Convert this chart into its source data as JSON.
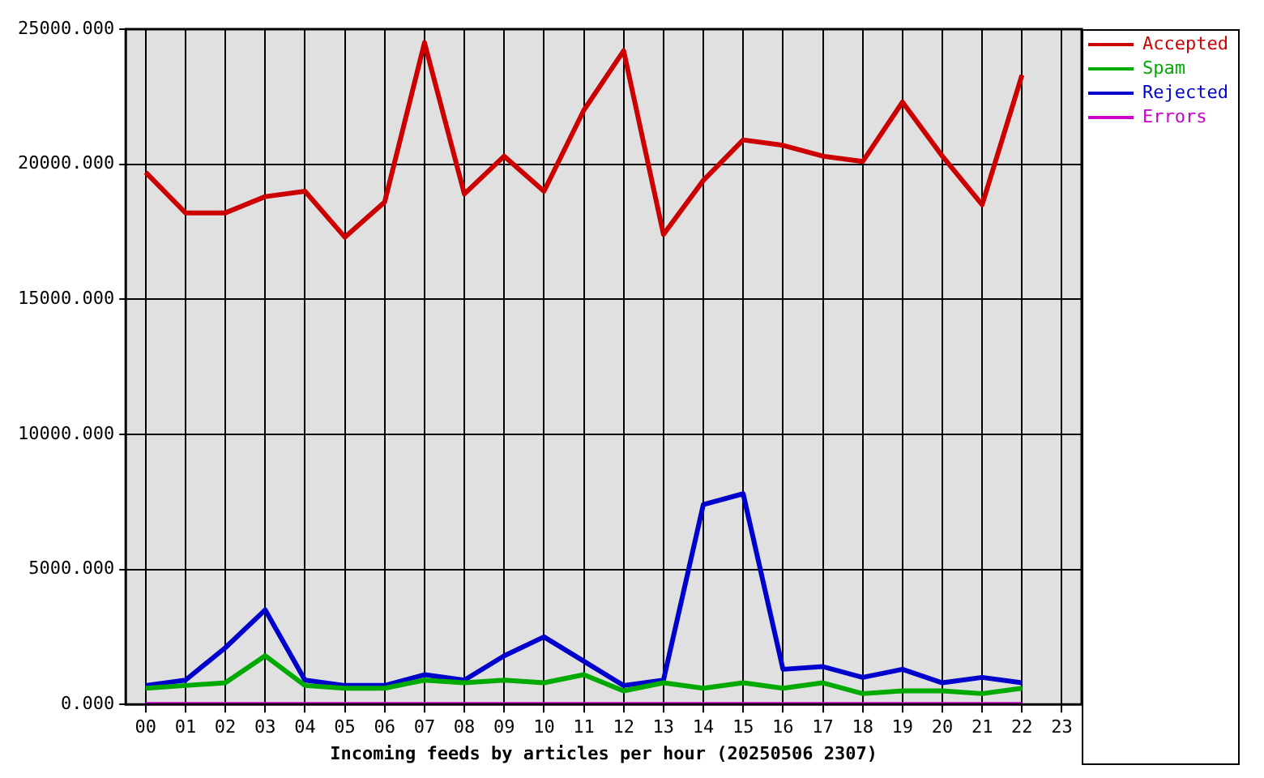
{
  "chart_data": {
    "type": "line",
    "xlabel": "Incoming feeds by articles per hour (20250506 2307)",
    "categories": [
      "00",
      "01",
      "02",
      "03",
      "04",
      "05",
      "06",
      "07",
      "08",
      "09",
      "10",
      "11",
      "12",
      "13",
      "14",
      "15",
      "16",
      "17",
      "18",
      "19",
      "20",
      "21",
      "22",
      "23"
    ],
    "series": [
      {
        "name": "Accepted",
        "color": "#cc0000",
        "values": [
          19700,
          18200,
          18200,
          18800,
          19000,
          17300,
          18600,
          24500,
          18900,
          20300,
          19000,
          22000,
          24200,
          17400,
          19400,
          20900,
          20700,
          20300,
          20100,
          22300,
          20300,
          18500,
          23300,
          null
        ]
      },
      {
        "name": "Spam",
        "color": "#00aa00",
        "values": [
          600,
          700,
          800,
          1800,
          700,
          600,
          600,
          900,
          800,
          900,
          800,
          1100,
          500,
          800,
          600,
          800,
          600,
          800,
          400,
          500,
          500,
          400,
          600,
          null
        ]
      },
      {
        "name": "Rejected",
        "color": "#0000cc",
        "values": [
          700,
          900,
          2100,
          3500,
          900,
          700,
          700,
          1100,
          900,
          1800,
          2500,
          1600,
          700,
          900,
          7400,
          7800,
          1300,
          1400,
          1000,
          1300,
          800,
          1000,
          800,
          null
        ]
      },
      {
        "name": "Errors",
        "color": "#cc00cc",
        "values": [
          0,
          0,
          0,
          0,
          0,
          0,
          0,
          0,
          0,
          0,
          0,
          0,
          0,
          0,
          0,
          0,
          0,
          0,
          0,
          0,
          0,
          0,
          0,
          null
        ]
      }
    ],
    "ylim": [
      0,
      25000
    ],
    "yticks": [
      {
        "value": 0,
        "label": "0.000"
      },
      {
        "value": 5000,
        "label": "5000.000"
      },
      {
        "value": 10000,
        "label": "10000.000"
      },
      {
        "value": 15000,
        "label": "15000.000"
      },
      {
        "value": 20000,
        "label": "20000.000"
      },
      {
        "value": 25000,
        "label": "25000.000"
      }
    ],
    "grid": true,
    "legend": "top right",
    "marker": "none",
    "line_style": "solid"
  }
}
